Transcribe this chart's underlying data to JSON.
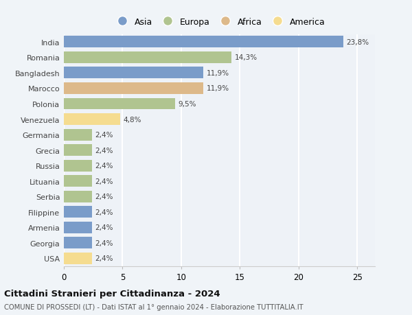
{
  "countries": [
    "India",
    "Romania",
    "Bangladesh",
    "Marocco",
    "Polonia",
    "Venezuela",
    "Germania",
    "Grecia",
    "Russia",
    "Lituania",
    "Serbia",
    "Filippine",
    "Armenia",
    "Georgia",
    "USA"
  ],
  "values": [
    23.8,
    14.3,
    11.9,
    11.9,
    9.5,
    4.8,
    2.4,
    2.4,
    2.4,
    2.4,
    2.4,
    2.4,
    2.4,
    2.4,
    2.4
  ],
  "labels": [
    "23,8%",
    "14,3%",
    "11,9%",
    "11,9%",
    "9,5%",
    "4,8%",
    "2,4%",
    "2,4%",
    "2,4%",
    "2,4%",
    "2,4%",
    "2,4%",
    "2,4%",
    "2,4%",
    "2,4%"
  ],
  "colors": [
    "#7a9cc9",
    "#b0c490",
    "#7a9cc9",
    "#ddb98a",
    "#b0c490",
    "#f5dc90",
    "#b0c490",
    "#b0c490",
    "#b0c490",
    "#b0c490",
    "#b0c490",
    "#7a9cc9",
    "#7a9cc9",
    "#7a9cc9",
    "#f5dc90"
  ],
  "continent_colors": {
    "Asia": "#7a9cc9",
    "Europa": "#b0c490",
    "Africa": "#ddb98a",
    "America": "#f5dc90"
  },
  "xlim": [
    0,
    26.5
  ],
  "xticks": [
    0,
    5,
    10,
    15,
    20,
    25
  ],
  "title": "Cittadini Stranieri per Cittadinanza - 2024",
  "subtitle": "COMUNE DI PROSSEDI (LT) - Dati ISTAT al 1° gennaio 2024 - Elaborazione TUTTITALIA.IT",
  "background_color": "#f0f4f8",
  "plot_bg_color": "#eef2f7",
  "grid_color": "#ffffff",
  "bar_height": 0.75,
  "label_fontsize": 7.5,
  "ytick_fontsize": 8.0
}
